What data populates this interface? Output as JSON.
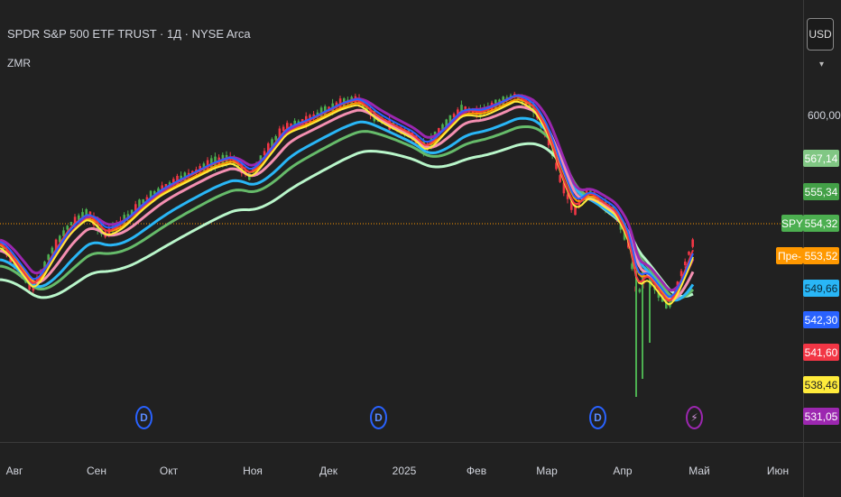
{
  "header": {
    "title": "SPDR S&P 500 ETF TRUST · 1Д · NYSE Arca",
    "indicator": "ZMR"
  },
  "currency_button": "USD",
  "currency_caret": "▾",
  "price_axis": {
    "labels": [
      "600,00"
    ]
  },
  "price_tags": [
    {
      "text": "567,14",
      "color": "#81c784"
    },
    {
      "text": "555,34",
      "color": "#43a047"
    },
    {
      "text": "554,32",
      "color": "#4caf50"
    },
    {
      "text": "553,52",
      "color": "#ff9800"
    },
    {
      "text": "549,66",
      "color": "#29b6f6"
    },
    {
      "text": "542,30",
      "color": "#2962ff"
    },
    {
      "text": "541,60",
      "color": "#f23645"
    },
    {
      "text": "538,46",
      "color": "#ffeb3b"
    },
    {
      "text": "531,05",
      "color": "#9c27b0"
    }
  ],
  "side_tags": {
    "symbol": "SPY",
    "pre": "Пре-"
  },
  "time_axis": [
    "Авг",
    "Сен",
    "Окт",
    "Ноя",
    "Дек",
    "2025",
    "Фев",
    "Мар",
    "Апр",
    "Май",
    "Июн"
  ],
  "event_markers": [
    {
      "label": "D",
      "type": "dividend"
    },
    {
      "label": "D",
      "type": "dividend"
    },
    {
      "label": "D",
      "type": "dividend"
    },
    {
      "label": "⚡",
      "type": "earnings"
    }
  ],
  "colors": {
    "background": "#212121",
    "up_candle": "#4caf50",
    "down_candle": "#f23645",
    "last_price_line": "#ff9800"
  }
}
